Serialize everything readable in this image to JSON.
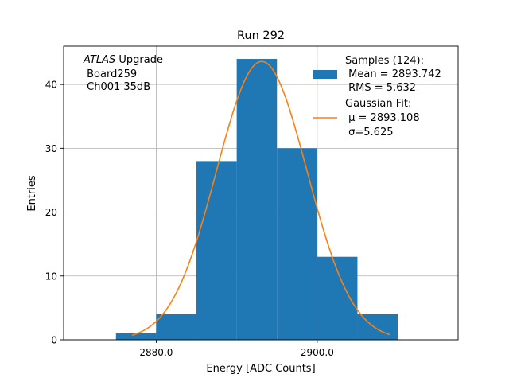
{
  "chart_data": {
    "type": "bar",
    "title": "Run 292",
    "xlabel": "Energy [ADC Counts]",
    "ylabel": "Entries",
    "xlim": [
      2868.5,
      2917.5
    ],
    "ylim": [
      0,
      46
    ],
    "grid": true,
    "x_ticks": [
      {
        "value": 2880,
        "label": "2880.0"
      },
      {
        "value": 2900,
        "label": "2900.0"
      }
    ],
    "y_ticks": [
      {
        "value": 0,
        "label": "0"
      },
      {
        "value": 10,
        "label": "10"
      },
      {
        "value": 20,
        "label": "20"
      },
      {
        "value": 30,
        "label": "30"
      },
      {
        "value": 40,
        "label": "40"
      }
    ],
    "bin_edges": [
      2875,
      2880,
      2885,
      2890,
      2895,
      2900,
      2905,
      2910
    ],
    "values": [
      1,
      4,
      28,
      44,
      30,
      13,
      4
    ],
    "bar_color": "#1f77b4",
    "fit": {
      "mu": 2893.108,
      "sigma": 5.625,
      "amplitude": 43.6,
      "x_range": [
        2877,
        2909
      ],
      "color": "#ff7f0e"
    },
    "annotation": {
      "italic": "ATLAS",
      "line1_rest": " Upgrade",
      "line2": " Board259",
      "line3": " Ch001 35dB"
    },
    "legend": {
      "placement": "upper right",
      "entries": [
        {
          "label_lines": [
            "Samples (124):",
            " Mean = 2893.742",
            " RMS = 5.632"
          ]
        },
        {
          "label_lines": [
            "Gaussian Fit:",
            " μ = 2893.108",
            " σ=5.625"
          ]
        }
      ]
    }
  }
}
